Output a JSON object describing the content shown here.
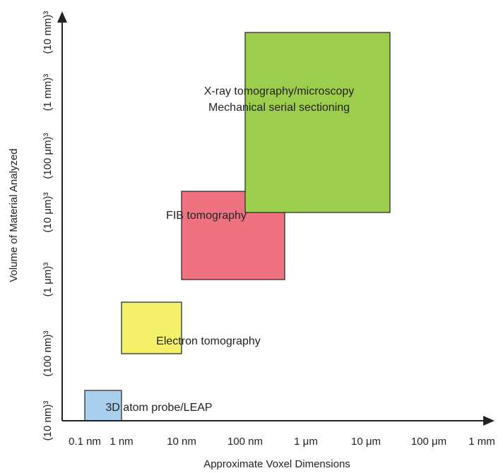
{
  "chart_data": {
    "type": "box-region",
    "title": "",
    "xlabel": "Approximate Voxel Dimensions",
    "ylabel": "Volume of Material Analyzed",
    "x_ticks": [
      "0.1 nm",
      "1 nm",
      "10 nm",
      "100 nm",
      "1 μm",
      "10 μm",
      "100 μm",
      "1 mm"
    ],
    "y_ticks": [
      "(10 nm)³",
      "(100 nm)³",
      "(1 μm)³",
      "(10 μm)³",
      "(100 μm)³",
      "(1 mm)³",
      "(10 mm)³"
    ],
    "regions": [
      {
        "labels": [
          "3D atom probe/LEAP"
        ],
        "color": "#a8cfec",
        "x_range": [
          "0.1 nm",
          "1 nm"
        ],
        "y_range": [
          "(10 nm)³",
          "(100 nm)³"
        ]
      },
      {
        "labels": [
          "Electron tomography"
        ],
        "color": "#f5f06a",
        "x_range": [
          "1 nm",
          "10 nm"
        ],
        "y_range": [
          "(100 nm)³",
          "(1 μm)³"
        ]
      },
      {
        "labels": [
          "FIB tomography"
        ],
        "color": "#ef7280",
        "x_range": [
          "10 nm",
          "1 μm"
        ],
        "y_range": [
          "(1 μm)³",
          "(100 μm)³"
        ]
      },
      {
        "labels": [
          "X-ray tomography/microscopy",
          "Mechanical serial sectioning"
        ],
        "color": "#9ccd4c",
        "x_range": [
          "100 nm",
          "10 μm"
        ],
        "y_range": [
          "(10 μm)³",
          "(10 mm)³"
        ]
      }
    ]
  }
}
